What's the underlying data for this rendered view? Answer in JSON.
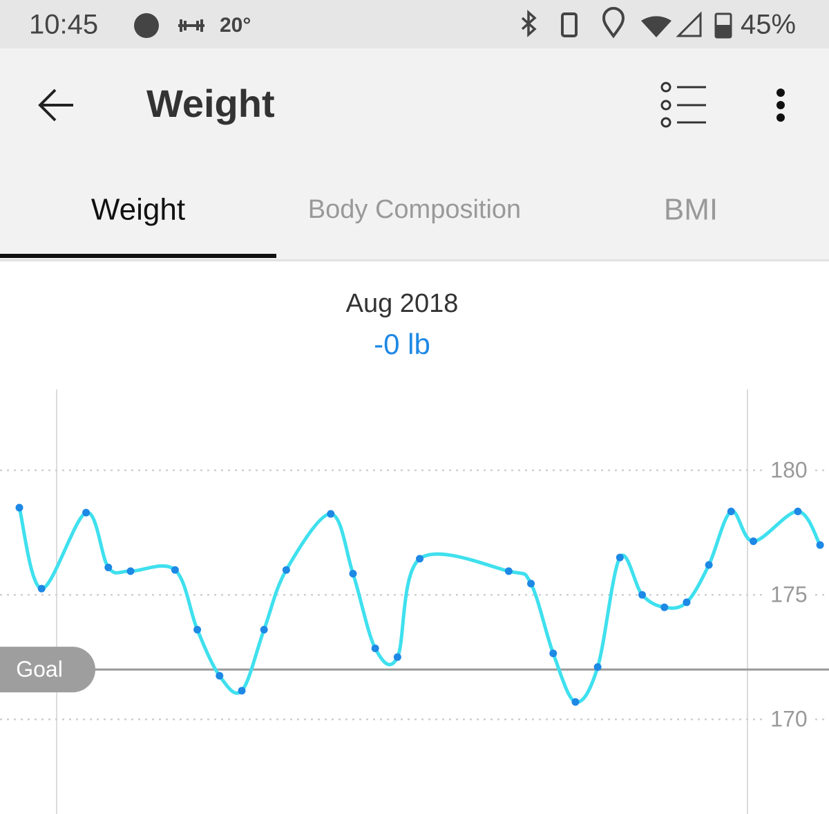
{
  "status_bar": {
    "time": "10:45",
    "temperature": "20°",
    "battery": "45%"
  },
  "app_bar": {
    "title": "Weight"
  },
  "tabs": [
    "Weight",
    "Body Composition",
    "BMI"
  ],
  "chart_data": {
    "type": "line",
    "title": "Aug 2018",
    "subtitle": "-0 lb",
    "x": [
      0,
      1,
      3,
      4,
      5,
      7,
      8,
      9,
      10,
      11,
      12,
      14,
      15,
      16,
      17,
      18,
      22,
      23,
      24,
      25,
      26,
      27,
      28,
      29,
      30,
      31,
      32,
      33,
      35,
      36
    ],
    "series": [
      {
        "name": "Weight",
        "color": "#3fe0ee",
        "marker_color": "#1e88e5",
        "values": [
          178.5,
          175.25,
          178.3,
          176.1,
          175.95,
          176.0,
          173.6,
          171.75,
          171.15,
          173.6,
          176.0,
          178.25,
          175.85,
          172.85,
          172.5,
          176.45,
          175.95,
          175.45,
          172.65,
          170.7,
          172.1,
          176.5,
          175.0,
          174.5,
          174.7,
          176.2,
          178.35,
          177.15,
          178.35,
          177.0
        ]
      }
    ],
    "xlim": [
      -0.87,
      36.4
    ],
    "ylim": [
      166.2,
      183.25
    ],
    "yticks": [
      170,
      175,
      180
    ],
    "goal": {
      "label": "Goal",
      "value": 172
    }
  }
}
